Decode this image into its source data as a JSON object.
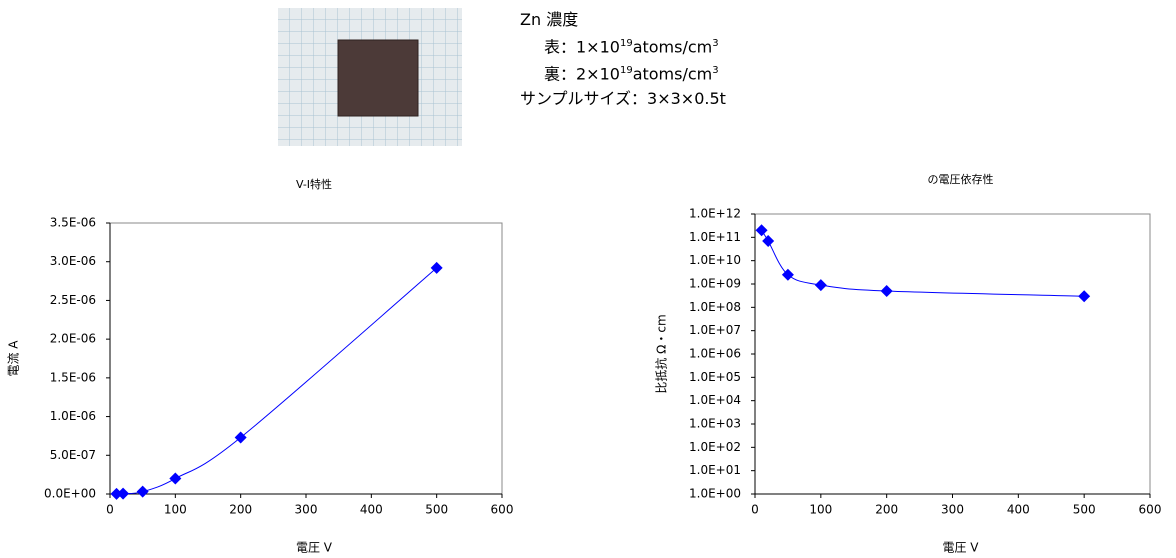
{
  "sample": {
    "heading": "Zn 濃度",
    "front": {
      "prefix": "表：1×10",
      "exponent": "19",
      "unit": "atoms/cm",
      "unit_exponent": "3"
    },
    "back": {
      "prefix": "裏：2×10",
      "exponent": "19",
      "unit": "atoms/cm",
      "unit_exponent": "3"
    },
    "size": "サンプルサイズ：3×3×0.5t"
  },
  "chart_data": [
    {
      "type": "line",
      "title": "V-I特性",
      "x_label": "電圧 V",
      "y_label": "電流 A",
      "x": [
        10,
        20,
        50,
        100,
        200,
        500
      ],
      "values": [
        2e-09,
        5e-09,
        3e-08,
        2e-07,
        7.3e-07,
        2.92e-06
      ],
      "color": "#0000ff",
      "log_y": false,
      "grid": false,
      "xlim": [
        0,
        600
      ],
      "xticks": [
        0,
        100,
        200,
        300,
        400,
        500,
        600
      ],
      "ylim": [
        0,
        3.5e-06
      ],
      "yticks": [
        {
          "value": 0,
          "label": "0.0E+00"
        },
        {
          "value": 5e-07,
          "label": "5.0E-07"
        },
        {
          "value": 1e-06,
          "label": "1.0E-06"
        },
        {
          "value": 1.5e-06,
          "label": "1.5E-06"
        },
        {
          "value": 2e-06,
          "label": "2.0E-06"
        },
        {
          "value": 2.5e-06,
          "label": "2.5E-06"
        },
        {
          "value": 3e-06,
          "label": "3.0E-06"
        },
        {
          "value": 3.5e-06,
          "label": "3.5E-06"
        }
      ]
    },
    {
      "type": "line",
      "title": "の電圧依存性",
      "x_label": "電圧 V",
      "y_label": "比抵抗 Ω・cm",
      "x": [
        10,
        20,
        50,
        100,
        200,
        500
      ],
      "values": [
        200000000000,
        70000000000,
        2500000000,
        900000000,
        500000000,
        300000000
      ],
      "color": "#0000ff",
      "log_y": true,
      "grid": false,
      "xlim": [
        0,
        600
      ],
      "xticks": [
        0,
        100,
        200,
        300,
        400,
        500,
        600
      ],
      "ylim": [
        1,
        1000000000000
      ],
      "yticks": [
        {
          "value": 1,
          "label": "1.0E+00"
        },
        {
          "value": 10,
          "label": "1.0E+01"
        },
        {
          "value": 100,
          "label": "1.0E+02"
        },
        {
          "value": 1000,
          "label": "1.0E+03"
        },
        {
          "value": 10000,
          "label": "1.0E+04"
        },
        {
          "value": 100000,
          "label": "1.0E+05"
        },
        {
          "value": 1000000,
          "label": "1.0E+06"
        },
        {
          "value": 10000000,
          "label": "1.0E+07"
        },
        {
          "value": 100000000,
          "label": "1.0E+08"
        },
        {
          "value": 1000000000,
          "label": "1.0E+09"
        },
        {
          "value": 10000000000,
          "label": "1.0E+10"
        },
        {
          "value": 100000000000,
          "label": "1.0E+11"
        },
        {
          "value": 1000000000000,
          "label": "1.0E+12"
        }
      ]
    }
  ]
}
